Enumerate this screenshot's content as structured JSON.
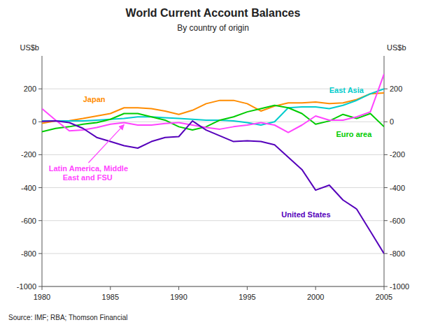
{
  "chart_data": {
    "type": "line",
    "title": "World Current Account Balances",
    "subtitle": "By country of origin",
    "ylabel": "US$b",
    "y2label": "US$b",
    "source": "Source: IMF; RBA; Thomson Financial",
    "x": [
      1980,
      1981,
      1982,
      1983,
      1984,
      1985,
      1986,
      1987,
      1988,
      1989,
      1990,
      1991,
      1992,
      1993,
      1994,
      1995,
      1996,
      1997,
      1998,
      1999,
      2000,
      2001,
      2002,
      2003,
      2004,
      2005
    ],
    "xlim": [
      1980,
      2005
    ],
    "xticks": [
      1980,
      1985,
      1990,
      1995,
      2000,
      2005
    ],
    "ylim": [
      -1000,
      400
    ],
    "yticks": [
      -1000,
      -800,
      -600,
      -400,
      -200,
      0,
      200
    ],
    "y2lim": [
      -1000,
      400
    ],
    "y2ticks": [
      -1000,
      -800,
      -600,
      -400,
      -200,
      0,
      200
    ],
    "grid": true,
    "series": [
      {
        "name": "Japan",
        "color": "#FF8C00",
        "values": [
          -10,
          5,
          7,
          20,
          35,
          50,
          85,
          85,
          80,
          65,
          45,
          70,
          110,
          130,
          130,
          110,
          65,
          95,
          115,
          115,
          120,
          110,
          115,
          135,
          170,
          175
        ]
      },
      {
        "name": "East Asia",
        "color": "#00CCCC",
        "values": [
          5,
          5,
          5,
          5,
          10,
          15,
          20,
          30,
          30,
          25,
          20,
          15,
          10,
          10,
          5,
          -5,
          -20,
          0,
          85,
          90,
          90,
          80,
          100,
          130,
          170,
          200
        ]
      },
      {
        "name": "Euro area",
        "color": "#00CC00",
        "values": [
          -60,
          -40,
          -30,
          -15,
          -5,
          15,
          50,
          50,
          30,
          10,
          -30,
          -50,
          -30,
          10,
          30,
          60,
          80,
          100,
          85,
          50,
          -15,
          5,
          45,
          20,
          50,
          -30
        ]
      },
      {
        "name": "Latin America, Middle East and FSU",
        "color": "#FF44FF",
        "values": [
          80,
          10,
          -55,
          -50,
          -35,
          -15,
          -5,
          -20,
          -20,
          -10,
          -5,
          -20,
          -35,
          -45,
          -30,
          -20,
          -5,
          -20,
          -65,
          -20,
          35,
          10,
          10,
          30,
          60,
          290
        ]
      },
      {
        "name": "United States",
        "color": "#5500BB",
        "values": [
          2,
          5,
          -5,
          -40,
          -95,
          -120,
          -145,
          -160,
          -120,
          -95,
          -90,
          5,
          -50,
          -85,
          -120,
          -115,
          -120,
          -140,
          -215,
          -290,
          -415,
          -385,
          -475,
          -530,
          -665,
          -800
        ]
      }
    ]
  }
}
